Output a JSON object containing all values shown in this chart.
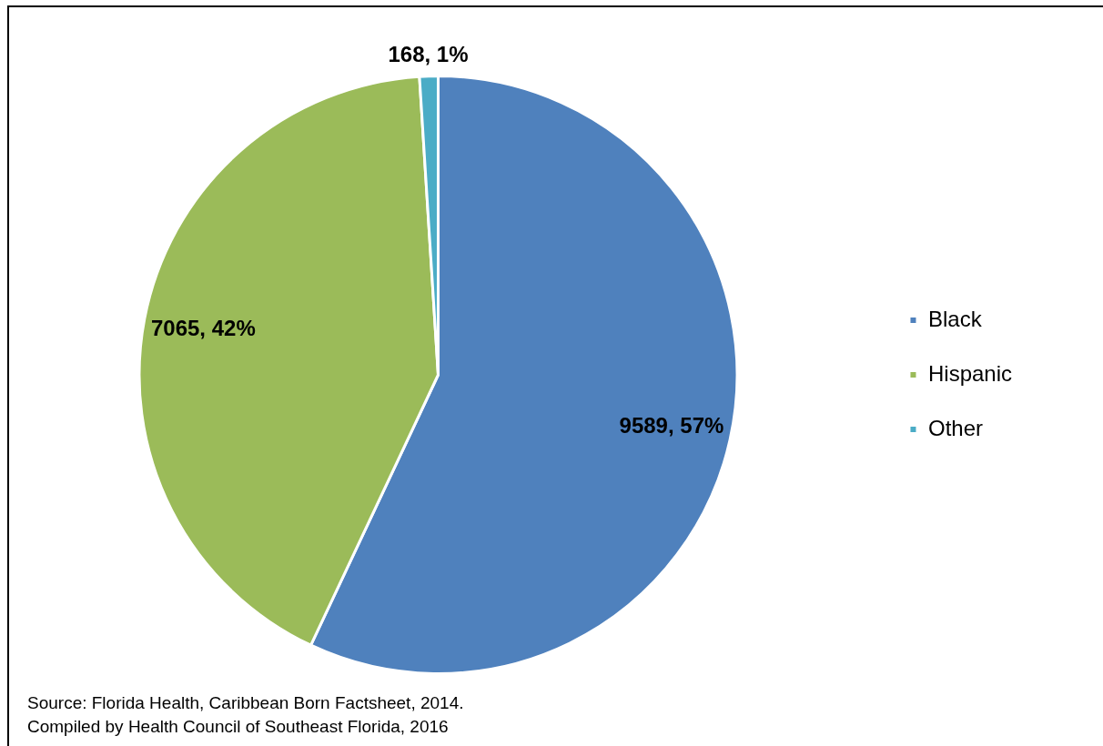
{
  "chart_data": {
    "type": "pie",
    "categories": [
      "Black",
      "Hispanic",
      "Other"
    ],
    "values": [
      9589,
      7065,
      168
    ],
    "colors": [
      "#4f81bd",
      "#9bbb59",
      "#4bacc6"
    ],
    "value_labels": [
      "9589, 57%",
      "7065, 42%",
      "168, 1%"
    ],
    "legend": "right",
    "annotations": [
      "Source: Florida Health, Caribbean Born Factsheet, 2014.",
      "Compiled by Health Council of Southeast Florida, 2016"
    ]
  }
}
